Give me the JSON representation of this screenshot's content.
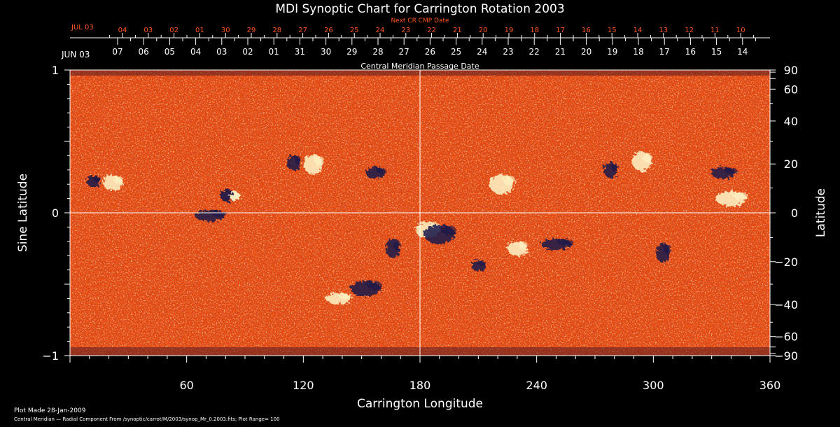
{
  "chart_data": {
    "type": "heatmap",
    "title": "MDI Synoptic Chart for Carrington Rotation 2003",
    "xlabel": "Carrington Longitude",
    "ylabel_left": "Sine Latitude",
    "ylabel_right": "Latitude",
    "xlim": [
      0,
      360
    ],
    "ylim": [
      -1,
      1
    ],
    "x_ticks": [
      60,
      120,
      180,
      240,
      300,
      360
    ],
    "y_left_ticks": [
      {
        "value": 1,
        "label": "1"
      },
      {
        "value": 0,
        "label": "0"
      },
      {
        "value": -1,
        "label": "−1"
      }
    ],
    "y_right_ticks": [
      90,
      60,
      40,
      20,
      0,
      -20,
      -40,
      -60,
      -90
    ],
    "cmp_axis_label": "Central Meridian Passage Date",
    "cmp_month": "JUN 03",
    "cmp_dates": [
      "07",
      "06",
      "05",
      "04",
      "03",
      "02",
      "01",
      "31",
      "30",
      "29",
      "28",
      "27",
      "26",
      "25",
      "24",
      "23",
      "22",
      "21",
      "20",
      "19",
      "18",
      "17",
      "16",
      "15",
      "14"
    ],
    "next_cr_label": "Next CR CMP Date",
    "next_cr_month": "JUL 03",
    "next_cr_dates": [
      "04",
      "03",
      "02",
      "01",
      "30",
      "29",
      "28",
      "27",
      "26",
      "25",
      "24",
      "23",
      "22",
      "21",
      "20",
      "19",
      "18",
      "17",
      "16",
      "15",
      "14",
      "13",
      "12",
      "11",
      "10"
    ],
    "grid": {
      "x": [
        180
      ],
      "y_sine": [
        0
      ]
    },
    "colors": {
      "background": "#e64a10",
      "positive": "#fff6c8",
      "negative": "#14144a",
      "next_cr_text": "#ff5522",
      "axes": "#ffffff"
    },
    "plot_range": "100",
    "regions": [
      {
        "lon": 12,
        "sinlat": 0.22,
        "polarity": "negative"
      },
      {
        "lon": 22,
        "sinlat": 0.21,
        "polarity": "positive"
      },
      {
        "lon": 83,
        "sinlat": 0.12,
        "polarity": "mixed"
      },
      {
        "lon": 72,
        "sinlat": -0.02,
        "polarity": "negative"
      },
      {
        "lon": 115,
        "sinlat": 0.35,
        "polarity": "negative"
      },
      {
        "lon": 125,
        "sinlat": 0.34,
        "polarity": "positive"
      },
      {
        "lon": 138,
        "sinlat": -0.6,
        "polarity": "positive"
      },
      {
        "lon": 152,
        "sinlat": -0.53,
        "polarity": "negative"
      },
      {
        "lon": 166,
        "sinlat": -0.25,
        "polarity": "negative"
      },
      {
        "lon": 157,
        "sinlat": 0.28,
        "polarity": "negative"
      },
      {
        "lon": 184,
        "sinlat": -0.12,
        "polarity": "positive"
      },
      {
        "lon": 190,
        "sinlat": -0.15,
        "polarity": "negative"
      },
      {
        "lon": 210,
        "sinlat": -0.37,
        "polarity": "negative"
      },
      {
        "lon": 230,
        "sinlat": -0.25,
        "polarity": "positive"
      },
      {
        "lon": 222,
        "sinlat": 0.2,
        "polarity": "positive"
      },
      {
        "lon": 250,
        "sinlat": -0.22,
        "polarity": "negative"
      },
      {
        "lon": 278,
        "sinlat": 0.3,
        "polarity": "negative"
      },
      {
        "lon": 294,
        "sinlat": 0.36,
        "polarity": "positive"
      },
      {
        "lon": 336,
        "sinlat": 0.28,
        "polarity": "negative"
      },
      {
        "lon": 340,
        "sinlat": 0.1,
        "polarity": "positive"
      },
      {
        "lon": 305,
        "sinlat": -0.28,
        "polarity": "negative"
      }
    ]
  },
  "footer": {
    "plot_made": "Plot Made 28-Jan-2009",
    "description": "Central Meridian — Radial Component From /synoptic/carrot/M/2003/synop_Mr_0.2003.fits; Plot Range=  100"
  }
}
